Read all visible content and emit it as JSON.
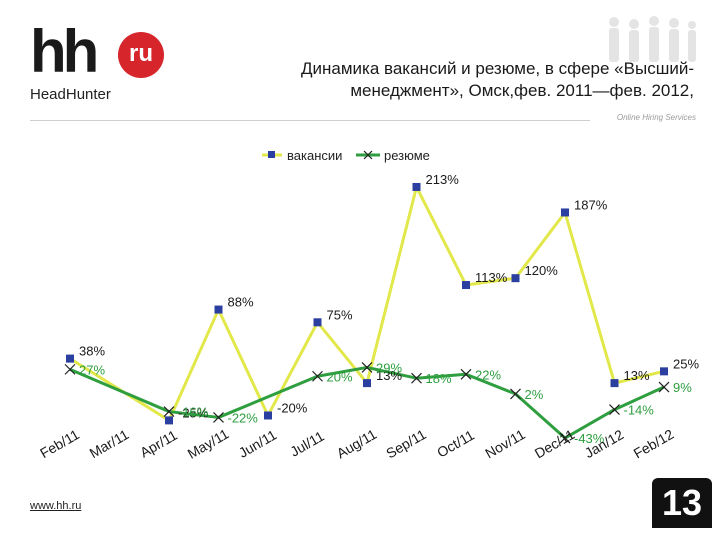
{
  "header": {
    "logo_text": "hh",
    "logo_badge": "ru",
    "logo_sub": "HeadHunter",
    "title": "Динамика вакансий и резюме, в сфере «Высший-менеджмент», Омск,фев. 2011—фев. 2012,",
    "tagline": "Online Hiring Services",
    "people_icon": "people-silhouettes-icon"
  },
  "footer": {
    "url": "www.hh.ru",
    "page_number": "13"
  },
  "colors": {
    "vacancies": "#e2e84a",
    "vacancies_marker": "#2b3fa0",
    "resumes": "#2e9e3f",
    "label_blue": "#1a1a1a",
    "label_green": "#2e9e3f"
  },
  "chart_data": {
    "type": "line",
    "title": "",
    "legend_position": "top-center",
    "categories": [
      "Feb/11",
      "Mar/11",
      "Apr/11",
      "May/11",
      "Jun/11",
      "Jul/11",
      "Aug/11",
      "Sep/11",
      "Oct/11",
      "Nov/11",
      "Dec/11",
      "Jan/12",
      "Feb/12"
    ],
    "series": [
      {
        "name": "вакансии",
        "values": [
          38,
          null,
          -25,
          88,
          -20,
          75,
          13,
          213,
          113,
          120,
          187,
          13,
          25
        ],
        "labels": [
          "38%",
          "",
          "-25%",
          "88%",
          "-20%",
          "75%",
          "13%",
          "213%",
          "113%",
          "120%",
          "187%",
          "13%",
          "25%"
        ]
      },
      {
        "name": "резюме",
        "values": [
          27,
          null,
          -16,
          -22,
          null,
          20,
          29,
          18,
          22,
          2,
          -43,
          -14,
          9
        ],
        "labels": [
          "27%",
          "",
          "-16%",
          "-22%",
          "",
          "20%",
          "29%",
          "18%",
          "22%",
          "2%",
          "-43%",
          "-14%",
          "9%"
        ]
      }
    ],
    "ylim": [
      -45,
      215
    ],
    "xlabel": "",
    "ylabel": ""
  }
}
